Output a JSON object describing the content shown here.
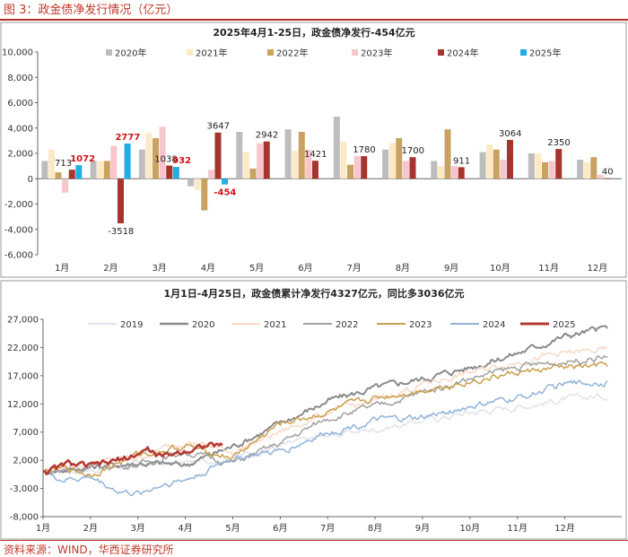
{
  "figure_title": "图 3：政金债净发行情况（亿元）",
  "source_note": "资料来源：WIND，华西证券研究所",
  "chart_data": [
    {
      "type": "bar",
      "title": "2025年4月1-25日，政金债净发行-454亿元",
      "categories": [
        "1月",
        "2月",
        "3月",
        "4月",
        "5月",
        "6月",
        "7月",
        "8月",
        "9月",
        "10月",
        "11月",
        "12月"
      ],
      "ylim": [
        -6000,
        10000
      ],
      "yticks": [
        -6000,
        -4000,
        -2000,
        0,
        2000,
        4000,
        6000,
        8000,
        10000
      ],
      "ytick_labels": [
        "-6,000",
        "-4,000",
        "-2,000",
        "0",
        "2,000",
        "4,000",
        "6,000",
        "8,000",
        "10,000"
      ],
      "legend_position": "top",
      "series": [
        {
          "name": "2020年",
          "color": "#bdbdbd",
          "values": [
            1400,
            1400,
            2300,
            -600,
            3700,
            3900,
            4900,
            2300,
            1400,
            2100,
            2000,
            1500
          ]
        },
        {
          "name": "2021年",
          "color": "#fbeac4",
          "values": [
            2300,
            1400,
            3600,
            -900,
            2100,
            2200,
            2900,
            2800,
            1000,
            2700,
            2000,
            1300
          ]
        },
        {
          "name": "2022年",
          "color": "#c9a261",
          "values": [
            500,
            1400,
            3200,
            -2500,
            800,
            3700,
            1100,
            3200,
            3900,
            2300,
            1300,
            1700
          ]
        },
        {
          "name": "2023年",
          "color": "#f6c6cc",
          "values": [
            -1100,
            2600,
            4100,
            700,
            2800,
            2300,
            1800,
            1400,
            1000,
            1500,
            1400,
            300
          ]
        },
        {
          "name": "2024年",
          "color": "#a6342f",
          "values": [
            713,
            -3518,
            1038,
            3647,
            2942,
            1421,
            1780,
            1700,
            911,
            3064,
            2350,
            40
          ]
        },
        {
          "name": "2025年",
          "color": "#1faee6",
          "values": [
            1072,
            2777,
            932,
            -454,
            null,
            null,
            null,
            null,
            null,
            null,
            null,
            null
          ]
        }
      ],
      "data_labels": [
        {
          "series": "2024年",
          "month": "1月",
          "text": "713",
          "highlight": false
        },
        {
          "series": "2025年",
          "month": "1月",
          "text": "1072",
          "highlight": true
        },
        {
          "series": "2024年",
          "month": "2月",
          "text": "-3518",
          "highlight": false
        },
        {
          "series": "2025年",
          "month": "2月",
          "text": "2777",
          "highlight": true
        },
        {
          "series": "2024年",
          "month": "3月",
          "text": "1038",
          "highlight": false
        },
        {
          "series": "2025年",
          "month": "3月",
          "text": "932",
          "highlight": true
        },
        {
          "series": "2024年",
          "month": "4月",
          "text": "3647",
          "highlight": false
        },
        {
          "series": "2025年",
          "month": "4月",
          "text": "-454",
          "highlight": true
        },
        {
          "series": "2024年",
          "month": "5月",
          "text": "2942",
          "highlight": false
        },
        {
          "series": "2024年",
          "month": "6月",
          "text": "1421",
          "highlight": false
        },
        {
          "series": "2024年",
          "month": "7月",
          "text": "1780",
          "highlight": false
        },
        {
          "series": "2024年",
          "month": "8月",
          "text": "1700",
          "highlight": false
        },
        {
          "series": "2024年",
          "month": "9月",
          "text": "911",
          "highlight": false
        },
        {
          "series": "2024年",
          "month": "10月",
          "text": "3064",
          "highlight": false
        },
        {
          "series": "2024年",
          "month": "11月",
          "text": "2350",
          "highlight": false
        },
        {
          "series": "2024年",
          "month": "12月",
          "text": "40",
          "highlight": false
        }
      ]
    },
    {
      "type": "line",
      "title": "1月1日-4月25日，政金债累计净发行4327亿元，同比多3036亿元",
      "x_labels": [
        "1月",
        "2月",
        "3月",
        "4月",
        "5月",
        "6月",
        "7月",
        "8月",
        "9月",
        "10月",
        "11月",
        "12月"
      ],
      "ylim": [
        -8000,
        27000
      ],
      "yticks": [
        -8000,
        -3000,
        2000,
        7000,
        12000,
        17000,
        22000,
        27000
      ],
      "ytick_labels": [
        "-8,000",
        "-3,000",
        "2,000",
        "7,000",
        "12,000",
        "17,000",
        "22,000",
        "27,000"
      ],
      "legend_position": "top",
      "series": [
        {
          "name": "2019",
          "color": "#dfe3ec",
          "width": 1.5,
          "anchors": [
            [
              0,
              0
            ],
            [
              1,
              300
            ],
            [
              2,
              1200
            ],
            [
              3,
              1500
            ],
            [
              4,
              2500
            ],
            [
              5,
              4500
            ],
            [
              6,
              6500
            ],
            [
              7,
              7500
            ],
            [
              8,
              9000
            ],
            [
              9,
              10500
            ],
            [
              10,
              11500
            ],
            [
              11,
              12800
            ],
            [
              11.9,
              13500
            ]
          ]
        },
        {
          "name": "2020",
          "color": "#8a8a8a",
          "width": 2,
          "anchors": [
            [
              0,
              0
            ],
            [
              1,
              800
            ],
            [
              2,
              1500
            ],
            [
              3,
              1200
            ],
            [
              4,
              4500
            ],
            [
              5,
              8500
            ],
            [
              6,
              12500
            ],
            [
              7,
              14800
            ],
            [
              8,
              16500
            ],
            [
              9,
              18500
            ],
            [
              10,
              21000
            ],
            [
              11,
              24000
            ],
            [
              11.9,
              25500
            ]
          ]
        },
        {
          "name": "2021",
          "color": "#f7d9c8",
          "width": 1.5,
          "anchors": [
            [
              0,
              0
            ],
            [
              1,
              1500
            ],
            [
              2,
              2500
            ],
            [
              3,
              5500
            ],
            [
              4,
              3500
            ],
            [
              5,
              7000
            ],
            [
              6,
              10500
            ],
            [
              7,
              12500
            ],
            [
              8,
              15500
            ],
            [
              9,
              17500
            ],
            [
              10,
              19500
            ],
            [
              11,
              21000
            ],
            [
              11.9,
              21500
            ]
          ]
        },
        {
          "name": "2022",
          "color": "#a0a0a0",
          "width": 1.5,
          "anchors": [
            [
              0,
              0
            ],
            [
              1,
              700
            ],
            [
              2,
              1200
            ],
            [
              3,
              3500
            ],
            [
              4,
              1500
            ],
            [
              5,
              5000
            ],
            [
              6,
              9500
            ],
            [
              7,
              11500
            ],
            [
              8,
              14000
            ],
            [
              9,
              16500
            ],
            [
              10,
              18500
            ],
            [
              11,
              19500
            ],
            [
              11.9,
              20500
            ]
          ]
        },
        {
          "name": "2023",
          "color": "#c8a04e",
          "width": 1.5,
          "anchors": [
            [
              0,
              0
            ],
            [
              0.5,
              500
            ],
            [
              1,
              -500
            ],
            [
              2,
              3000
            ],
            [
              3,
              4500
            ],
            [
              4,
              2500
            ],
            [
              5,
              8500
            ],
            [
              6,
              10500
            ],
            [
              7,
              13000
            ],
            [
              8,
              14500
            ],
            [
              9,
              16000
            ],
            [
              10,
              17500
            ],
            [
              11,
              18500
            ],
            [
              11.9,
              18700
            ]
          ]
        },
        {
          "name": "2024",
          "color": "#93b3d6",
          "width": 1.5,
          "anchors": [
            [
              0,
              0
            ],
            [
              0.4,
              -1500
            ],
            [
              1,
              -1000
            ],
            [
              1.6,
              -3500
            ],
            [
              2,
              -4000
            ],
            [
              2.6,
              -2000
            ],
            [
              3,
              -1500
            ],
            [
              3.3,
              -500
            ],
            [
              4,
              2500
            ],
            [
              5,
              3500
            ],
            [
              6,
              7000
            ],
            [
              7,
              9000
            ],
            [
              8,
              9500
            ],
            [
              9,
              11500
            ],
            [
              10,
              13000
            ],
            [
              11,
              15500
            ],
            [
              11.9,
              16000
            ]
          ]
        },
        {
          "name": "2025",
          "color": "#b53a34",
          "width": 2.6,
          "anchors": [
            [
              0,
              0
            ],
            [
              0.3,
              500
            ],
            [
              0.5,
              1400
            ],
            [
              1,
              800
            ],
            [
              1.4,
              1500
            ],
            [
              1.8,
              2500
            ],
            [
              2.2,
              3900
            ],
            [
              2.5,
              2500
            ],
            [
              3,
              3800
            ],
            [
              3.4,
              4700
            ],
            [
              3.8,
              4400
            ]
          ]
        }
      ]
    }
  ]
}
